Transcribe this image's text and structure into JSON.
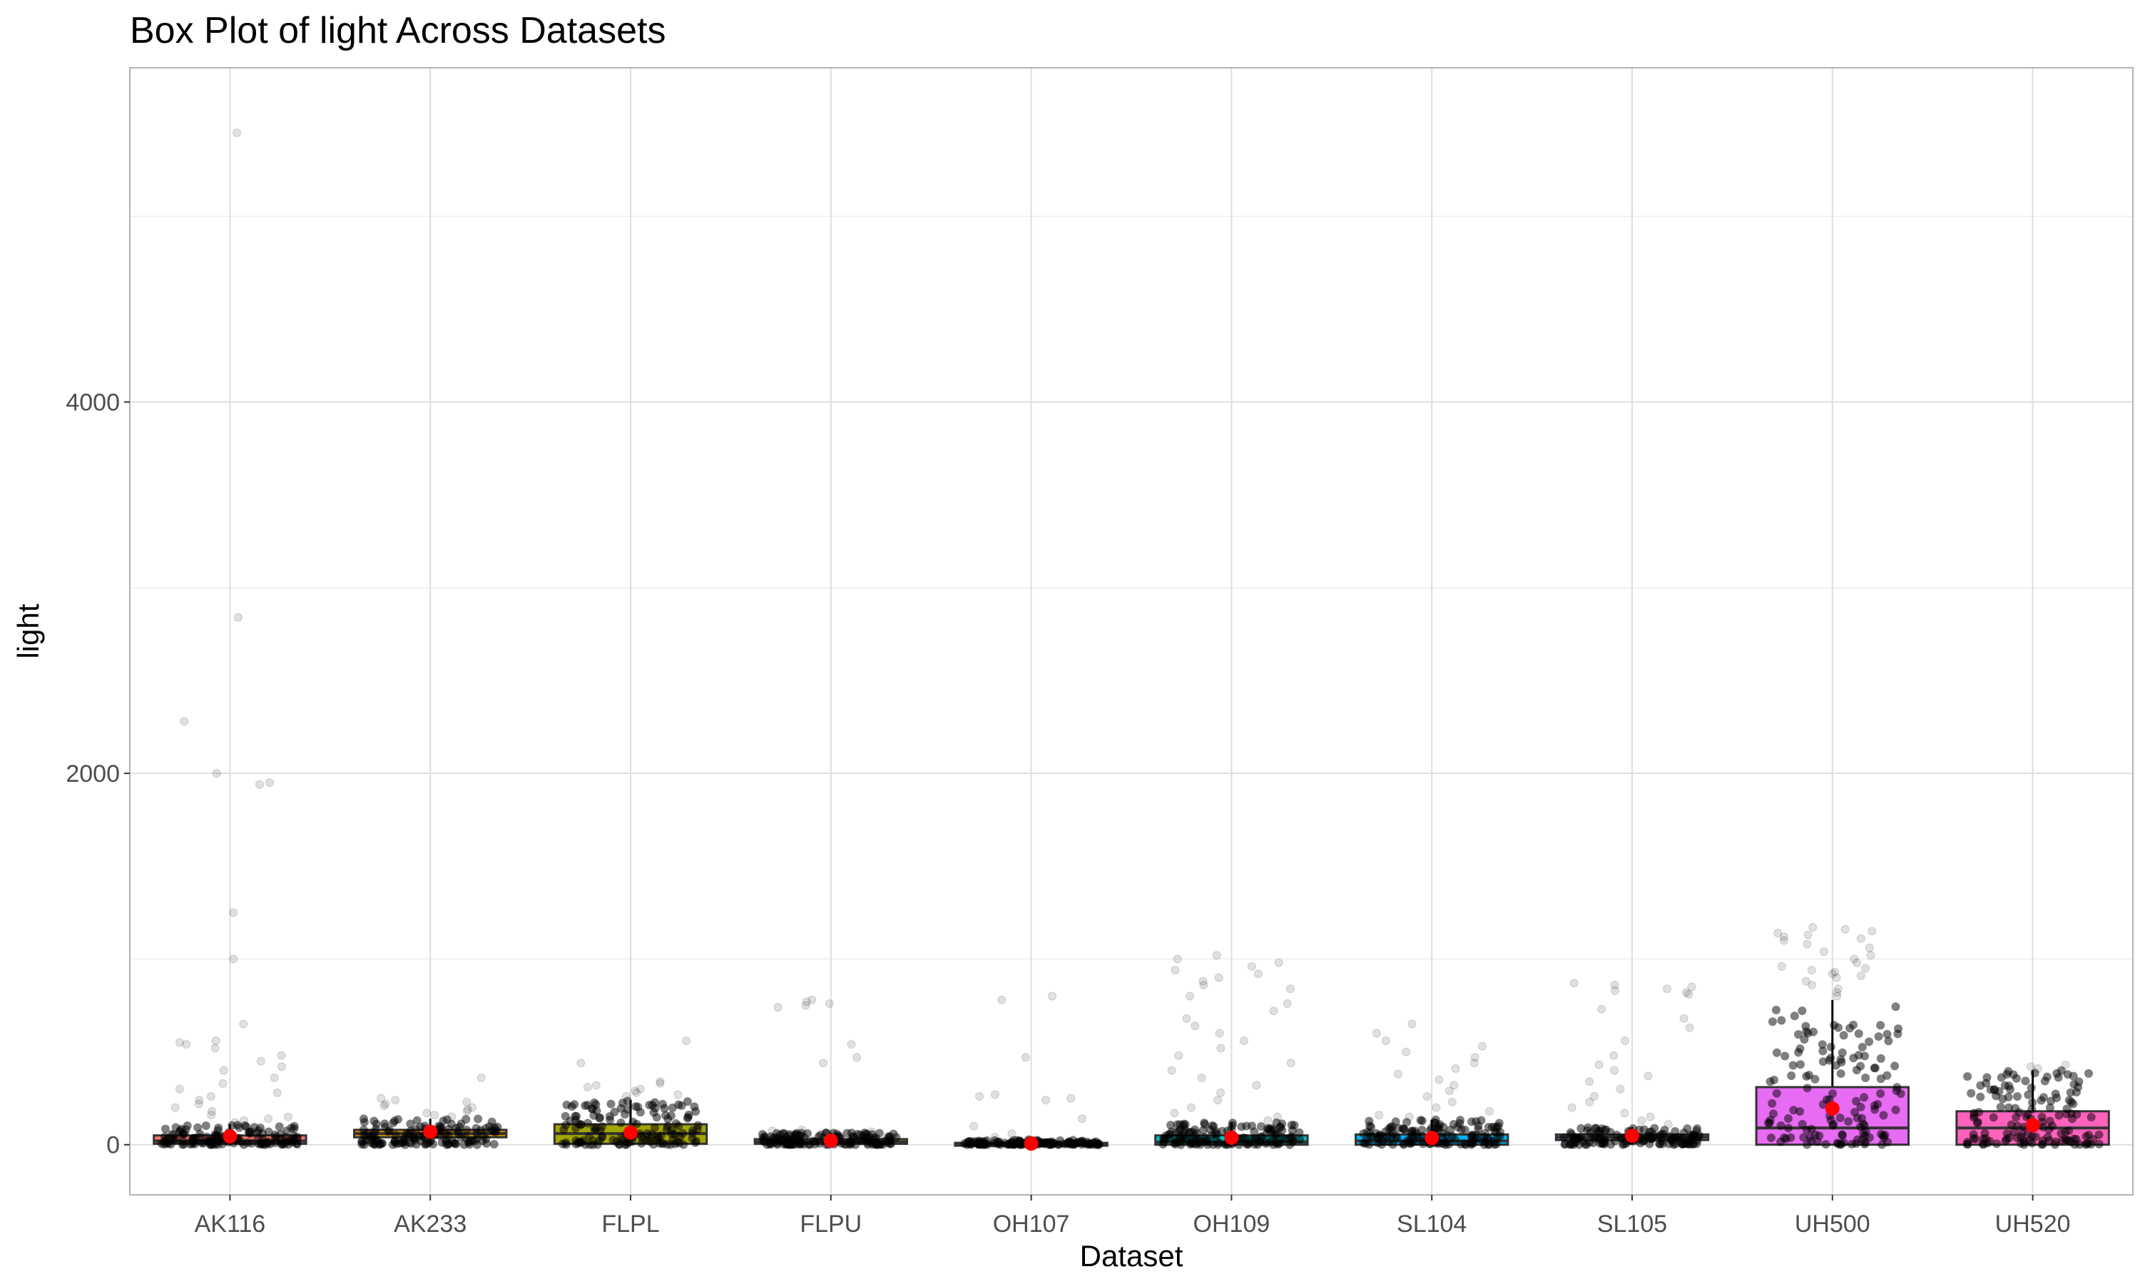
{
  "chart_data": {
    "type": "box",
    "title": "Box Plot of light Across Datasets",
    "xlabel": "Dataset",
    "ylabel": "light",
    "ylim": [
      -270,
      5800
    ],
    "yticks": [
      0,
      2000,
      4000
    ],
    "ytick_labels": [
      "0",
      "2000",
      "4000"
    ],
    "grid": true,
    "legend": "none",
    "colors": {
      "mean_point": "#ff0000",
      "jitter_point": "#000000",
      "grid": "#dedede",
      "panel_border": "#b3b3b3"
    },
    "categories": [
      "AK116",
      "AK233",
      "FLPL",
      "FLPU",
      "OH107",
      "OH109",
      "SL104",
      "SL105",
      "UH500",
      "UH520"
    ],
    "boxes": [
      {
        "name": "AK116",
        "color": "#f8766d",
        "min": 0,
        "q1": 5,
        "median": 20,
        "q3": 50,
        "max": 110,
        "mean": 45,
        "outliers": [
          5450,
          2840,
          2280,
          2000,
          1950,
          1940,
          1250,
          1000,
          650,
          560,
          550,
          540,
          520,
          480,
          450,
          420,
          400,
          360,
          330,
          300,
          280,
          260,
          240,
          220,
          200,
          180,
          160,
          150,
          140,
          130,
          120
        ]
      },
      {
        "name": "AK233",
        "color": "#d89000",
        "min": 0,
        "q1": 40,
        "median": 60,
        "q3": 80,
        "max": 140,
        "mean": 70,
        "outliers": [
          360,
          250,
          240,
          230,
          220,
          210,
          200,
          190,
          180,
          170,
          160,
          150
        ]
      },
      {
        "name": "FLPL",
        "color": "#a3a500",
        "min": 0,
        "q1": 5,
        "median": 60,
        "q3": 110,
        "max": 240,
        "mean": 65,
        "outliers": [
          560,
          440,
          340,
          330,
          320,
          310,
          300,
          290,
          280,
          270,
          260
        ]
      },
      {
        "name": "FLPU",
        "color": "#39b600",
        "min": 0,
        "q1": 5,
        "median": 15,
        "q3": 30,
        "max": 65,
        "mean": 22,
        "outliers": [
          780,
          770,
          760,
          750,
          740,
          540,
          470,
          440,
          80,
          75,
          70
        ]
      },
      {
        "name": "OH107",
        "color": "#00bf7d",
        "min": 0,
        "q1": 0,
        "median": 3,
        "q3": 10,
        "max": 25,
        "mean": 6,
        "outliers": [
          800,
          780,
          470,
          270,
          260,
          250,
          240,
          140,
          100,
          60,
          40,
          30
        ]
      },
      {
        "name": "OH109",
        "color": "#00bfc4",
        "min": 0,
        "q1": 0,
        "median": 15,
        "q3": 50,
        "max": 120,
        "mean": 38,
        "outliers": [
          1020,
          1000,
          980,
          960,
          940,
          920,
          900,
          880,
          860,
          840,
          800,
          760,
          720,
          680,
          640,
          600,
          560,
          520,
          480,
          440,
          400,
          360,
          320,
          280,
          240,
          200,
          170,
          150,
          130
        ]
      },
      {
        "name": "SL104",
        "color": "#00b0f6",
        "min": 0,
        "q1": 0,
        "median": 20,
        "q3": 55,
        "max": 135,
        "mean": 36,
        "outliers": [
          650,
          600,
          560,
          530,
          500,
          470,
          440,
          410,
          380,
          350,
          320,
          290,
          260,
          230,
          200,
          180,
          160,
          150
        ]
      },
      {
        "name": "SL105",
        "color": "#9590ff",
        "min": 0,
        "q1": 25,
        "median": 40,
        "q3": 55,
        "max": 95,
        "mean": 48,
        "outliers": [
          870,
          860,
          850,
          840,
          830,
          820,
          810,
          730,
          680,
          630,
          560,
          480,
          430,
          400,
          370,
          340,
          300,
          260,
          230,
          200,
          170,
          150,
          130,
          110
        ]
      },
      {
        "name": "UH500",
        "color": "#e76bf3",
        "min": 0,
        "q1": 0,
        "median": 90,
        "q3": 310,
        "max": 780,
        "mean": 195,
        "outliers": [
          1170,
          1160,
          1150,
          1140,
          1130,
          1120,
          1110,
          1100,
          1080,
          1060,
          1040,
          1020,
          1000,
          980,
          960,
          950,
          940,
          930,
          920,
          910,
          900,
          880,
          860,
          840,
          820,
          800
        ]
      },
      {
        "name": "UH520",
        "color": "#ff62bc",
        "min": 0,
        "q1": 0,
        "median": 90,
        "q3": 180,
        "max": 400,
        "mean": 105,
        "outliers": [
          430,
          420,
          410
        ]
      }
    ]
  }
}
